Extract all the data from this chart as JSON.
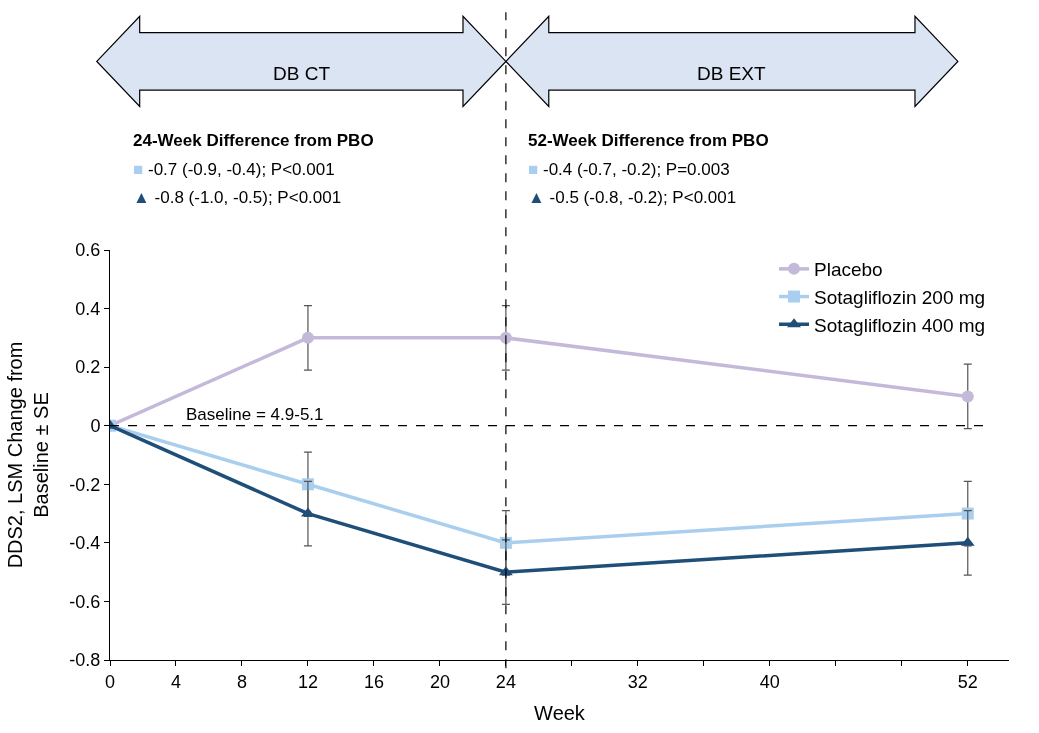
{
  "chart_data": {
    "type": "line",
    "xlabel": "Week",
    "ylabel": "DDS2, LSM Change from Baseline ± SE",
    "x": [
      0,
      12,
      24,
      52
    ],
    "xlim": [
      0,
      54.5
    ],
    "xticks": [
      0,
      4,
      8,
      12,
      16,
      20,
      24,
      {
        "value": 28,
        "label": null
      },
      32,
      {
        "value": 36,
        "label": null
      },
      40,
      {
        "value": 44,
        "label": null
      },
      {
        "value": 48,
        "label": null
      },
      52
    ],
    "ylim": [
      -0.8,
      0.6
    ],
    "yticks": [
      -0.8,
      -0.6,
      -0.4,
      -0.2,
      0,
      0.2,
      0.4,
      0.6
    ],
    "series": [
      {
        "name": "Placebo",
        "color": "#c5b9da",
        "marker": "circle",
        "values": [
          0,
          0.3,
          0.3,
          0.1
        ],
        "errors": [
          null,
          0.11,
          0.11,
          0.11
        ]
      },
      {
        "name": "Sotagliflozin 200 mg",
        "color": "#aacfee",
        "marker": "square",
        "values": [
          0,
          -0.2,
          -0.4,
          -0.3
        ],
        "errors": [
          null,
          0.11,
          0.11,
          0.11
        ]
      },
      {
        "name": "Sotagliflozin 400 mg",
        "color": "#1f4e79",
        "marker": "triangle",
        "values": [
          0,
          -0.3,
          -0.5,
          -0.4
        ],
        "errors": [
          null,
          0.11,
          0.11,
          0.11
        ]
      }
    ],
    "ref_lines": [
      {
        "axis": "y",
        "value": 0,
        "line_style": "dashed",
        "color": "#000000"
      },
      {
        "axis": "x",
        "value": 24,
        "line_style": "dashed",
        "color": "#000000"
      }
    ],
    "annotations": [
      "24-Week Difference from PBO",
      "■ -0.7 (-0.9, -0.4); P<0.001",
      "▲ -0.8 (-1.0, -0.5); P<0.001",
      "52-Week Difference from PBO",
      "■ -0.4 (-0.7, -0.2); P=0.003",
      "▲ -0.5 (-0.8, -0.2); P<0.001",
      "DB CT",
      "DB EXT",
      "Baseline = 4.9-5.1"
    ],
    "legend": "top right"
  }
}
